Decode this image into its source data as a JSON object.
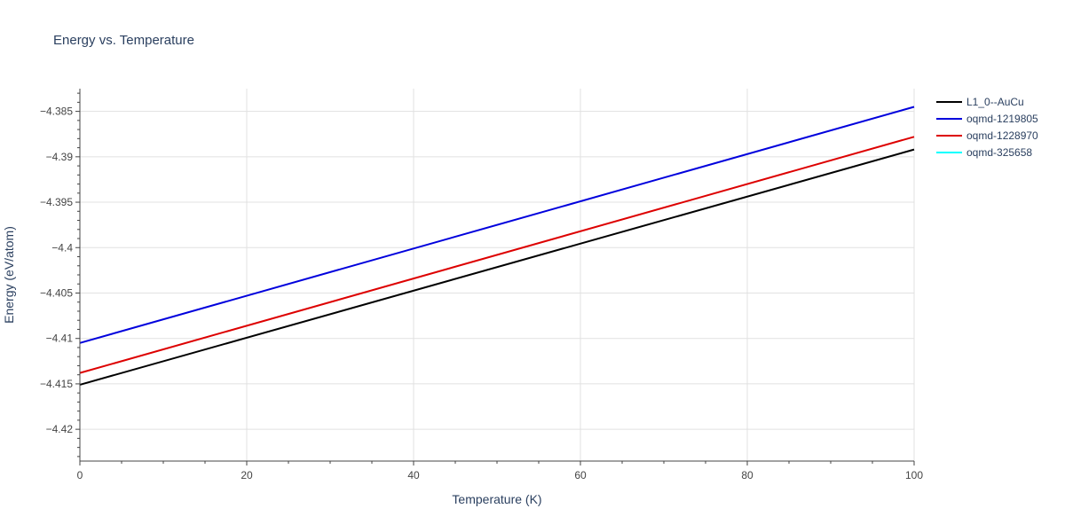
{
  "chart_data": {
    "type": "line",
    "title": "Energy vs. Temperature",
    "xlabel": "Temperature (K)",
    "ylabel": "Energy (eV/atom)",
    "xlim": [
      0,
      100
    ],
    "ylim": [
      -4.4235,
      -4.3825
    ],
    "x_ticks": [
      0,
      20,
      40,
      60,
      80,
      100
    ],
    "x_tick_labels": [
      "0",
      "20",
      "40",
      "60",
      "80",
      "100"
    ],
    "y_ticks": [
      -4.385,
      -4.39,
      -4.395,
      -4.4,
      -4.405,
      -4.41,
      -4.415,
      -4.42
    ],
    "y_tick_labels": [
      "−4.385",
      "−4.39",
      "−4.395",
      "−4.4",
      "−4.405",
      "−4.41",
      "−4.415",
      "−4.42"
    ],
    "grid": true,
    "legend_position": "top-right",
    "series": [
      {
        "name": "L1_0--AuCu",
        "color": "#000000",
        "x": [
          0,
          100
        ],
        "y": [
          -4.4151,
          -4.3892
        ]
      },
      {
        "name": "oqmd-1219805",
        "color": "#0000dd",
        "x": [
          0,
          100
        ],
        "y": [
          -4.4105,
          -4.3845
        ]
      },
      {
        "name": "oqmd-1228970",
        "color": "#dd0000",
        "x": [
          0,
          100
        ],
        "y": [
          -4.4138,
          -4.3878
        ]
      },
      {
        "name": "oqmd-325658",
        "color": "#00ffff",
        "x": [],
        "y": []
      }
    ]
  }
}
